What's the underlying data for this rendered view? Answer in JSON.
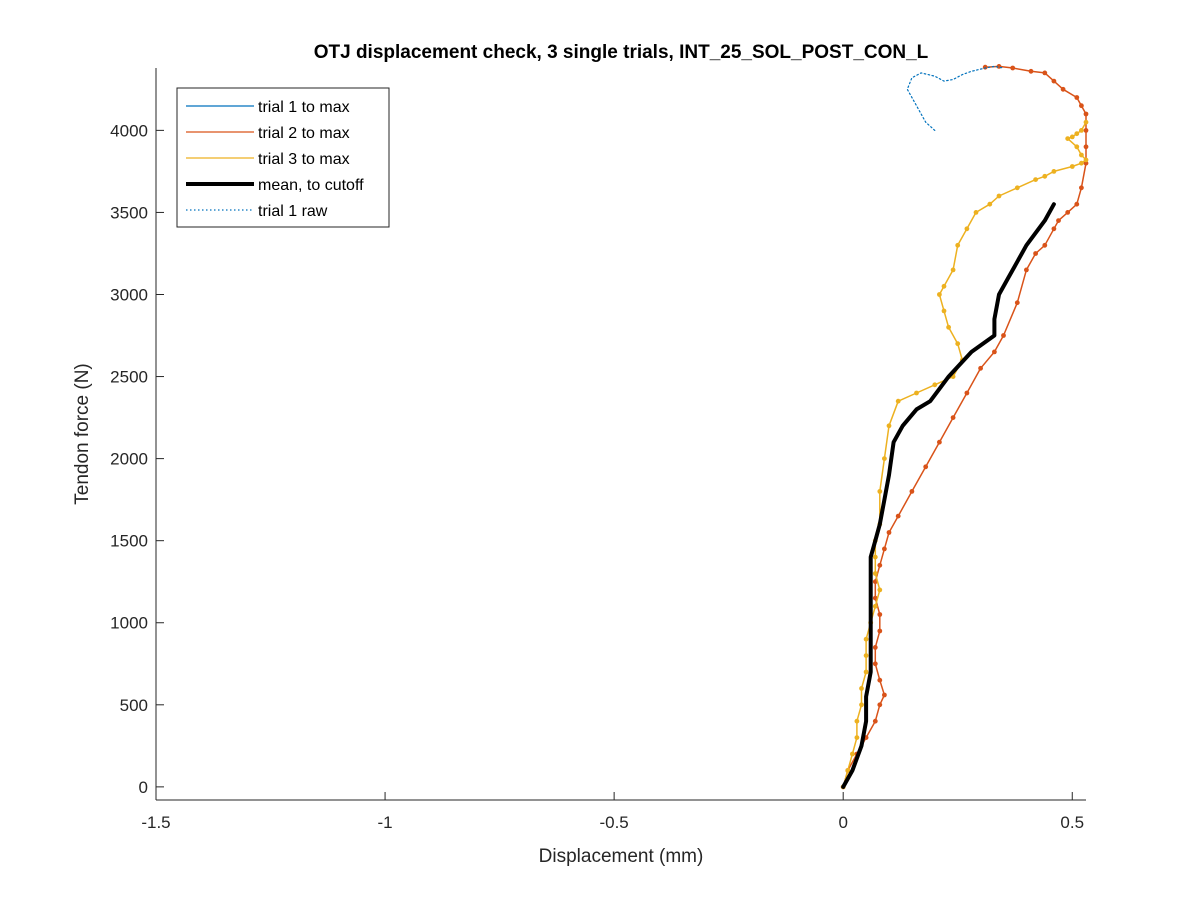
{
  "chart_data": {
    "type": "line",
    "title": "OTJ displacement check, 3 single trials, INT_25_SOL_POST_CON_L",
    "xlabel": "Displacement (mm)",
    "ylabel": "Tendon force (N)",
    "xlim": [
      -1.5,
      0.53
    ],
    "ylim": [
      -80,
      4380
    ],
    "xticks": [
      -1.5,
      -1,
      -0.5,
      0,
      0.5
    ],
    "xtick_labels": [
      "-1.5",
      "-1",
      "-0.5",
      "0",
      "0.5"
    ],
    "yticks": [
      0,
      500,
      1000,
      1500,
      2000,
      2500,
      3000,
      3500,
      4000
    ],
    "ytick_labels": [
      "0",
      "500",
      "1000",
      "1500",
      "2000",
      "2500",
      "3000",
      "3500",
      "4000"
    ],
    "grid": false,
    "legend_position": "top-left",
    "series": [
      {
        "name": "trial 1 to max",
        "color": "#0072BD",
        "style": "solid",
        "x": [],
        "y": []
      },
      {
        "name": "trial 2 to max",
        "color": "#D95319",
        "style": "solid",
        "markers": true,
        "x": [
          0.0,
          0.01,
          0.03,
          0.05,
          0.07,
          0.08,
          0.09,
          0.08,
          0.07,
          0.07,
          0.08,
          0.08,
          0.07,
          0.07,
          0.08,
          0.09,
          0.1,
          0.12,
          0.15,
          0.18,
          0.21,
          0.24,
          0.27,
          0.3,
          0.33,
          0.35,
          0.38,
          0.4,
          0.42,
          0.44,
          0.46,
          0.47,
          0.49,
          0.51,
          0.52,
          0.53,
          0.53,
          0.53,
          0.53,
          0.52,
          0.51,
          0.48,
          0.46,
          0.44,
          0.41,
          0.37,
          0.34,
          0.31
        ],
        "y": [
          0,
          100,
          200,
          300,
          400,
          500,
          560,
          650,
          750,
          850,
          950,
          1050,
          1150,
          1250,
          1350,
          1450,
          1550,
          1650,
          1800,
          1950,
          2100,
          2250,
          2400,
          2550,
          2650,
          2750,
          2950,
          3150,
          3250,
          3300,
          3400,
          3450,
          3500,
          3550,
          3650,
          3800,
          3900,
          4000,
          4100,
          4150,
          4200,
          4250,
          4300,
          4350,
          4360,
          4380,
          4390,
          4385
        ]
      },
      {
        "name": "trial 3 to max",
        "color": "#EDB120",
        "style": "solid",
        "markers": true,
        "x": [
          0.0,
          0.01,
          0.02,
          0.03,
          0.03,
          0.04,
          0.04,
          0.05,
          0.05,
          0.05,
          0.06,
          0.07,
          0.08,
          0.07,
          0.07,
          0.07,
          0.08,
          0.08,
          0.09,
          0.1,
          0.12,
          0.16,
          0.2,
          0.24,
          0.26,
          0.25,
          0.23,
          0.22,
          0.21,
          0.22,
          0.24,
          0.25,
          0.27,
          0.29,
          0.32,
          0.34,
          0.38,
          0.42,
          0.44,
          0.46,
          0.5,
          0.52,
          0.53,
          0.52,
          0.51,
          0.49,
          0.5,
          0.51,
          0.52,
          0.53
        ],
        "y": [
          0,
          100,
          200,
          300,
          400,
          500,
          600,
          700,
          800,
          900,
          1000,
          1100,
          1200,
          1300,
          1400,
          1500,
          1600,
          1800,
          2000,
          2200,
          2350,
          2400,
          2450,
          2500,
          2600,
          2700,
          2800,
          2900,
          3000,
          3050,
          3150,
          3300,
          3400,
          3500,
          3550,
          3600,
          3650,
          3700,
          3720,
          3750,
          3780,
          3800,
          3820,
          3850,
          3900,
          3950,
          3960,
          3980,
          4000,
          4050
        ]
      },
      {
        "name": "mean, to cutoff",
        "color": "#000000",
        "style": "solid",
        "width": 4,
        "x": [
          0.0,
          0.02,
          0.04,
          0.05,
          0.05,
          0.06,
          0.06,
          0.06,
          0.06,
          0.06,
          0.06,
          0.07,
          0.08,
          0.09,
          0.1,
          0.11,
          0.13,
          0.16,
          0.19,
          0.23,
          0.28,
          0.33,
          0.33,
          0.34,
          0.36,
          0.38,
          0.4,
          0.44,
          0.46
        ],
        "y": [
          0,
          100,
          250,
          400,
          550,
          700,
          850,
          1000,
          1150,
          1300,
          1400,
          1500,
          1600,
          1750,
          1900,
          2100,
          2200,
          2300,
          2350,
          2500,
          2650,
          2750,
          2850,
          3000,
          3100,
          3200,
          3300,
          3450,
          3550
        ]
      },
      {
        "name": "trial 1 raw",
        "color": "#0072BD",
        "style": "dotted",
        "x": [
          0.2,
          0.18,
          0.16,
          0.14,
          0.15,
          0.17,
          0.2,
          0.22,
          0.24,
          0.26,
          0.28,
          0.31,
          0.33,
          0.35
        ],
        "y": [
          4000,
          4050,
          4150,
          4250,
          4320,
          4350,
          4330,
          4300,
          4310,
          4340,
          4360,
          4380,
          4390,
          4380
        ]
      }
    ]
  }
}
